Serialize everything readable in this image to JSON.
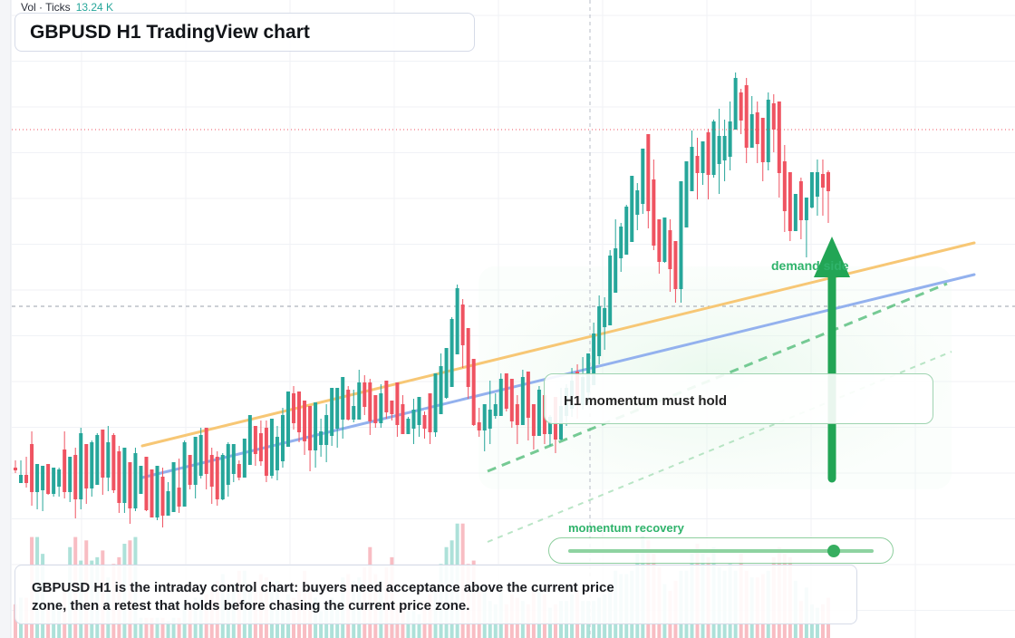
{
  "volume_legend": {
    "label": "Vol · Ticks",
    "value": "13.24 K"
  },
  "title": "GBPUSD H1 TradingView chart",
  "callout": "H1 momentum must hold",
  "zone_label": "demand side",
  "momentum": {
    "label": "momentum recovery",
    "level": 0.87
  },
  "summary": "GBPUSD H1 is the intraday control chart: buyers need acceptance above the current price zone, then a retest that holds before chasing the current price zone.",
  "colors": {
    "up": "#26a69a",
    "down": "#ef5361",
    "orange_line": "#f7c775",
    "blue_line": "#93b1ee",
    "green_accent": "#22a555"
  },
  "chart_data": {
    "type": "candlestick",
    "symbol": "GBPUSD",
    "timeframe": "H1",
    "candles": [
      [
        50,
        48,
        49,
        46,
        53,
        1.0
      ],
      [
        49,
        52,
        45,
        53,
        41,
        1.2
      ],
      [
        52,
        49,
        45,
        55,
        38,
        1.2
      ],
      [
        49,
        36,
        62,
        69,
        28,
        3.0
      ],
      [
        36,
        37,
        51,
        47,
        26,
        3.0
      ],
      [
        37,
        39,
        50,
        44,
        25,
        2.5
      ],
      [
        39,
        35,
        51,
        48,
        34,
        0.9
      ],
      [
        35,
        39,
        49,
        40,
        33,
        1.0
      ],
      [
        39,
        39,
        48,
        49,
        33,
        1.1
      ],
      [
        39,
        36,
        59,
        69,
        32,
        1.6
      ],
      [
        36,
        38,
        55,
        54,
        30,
        2.7
      ],
      [
        38,
        32,
        56,
        60,
        21,
        3.0
      ],
      [
        32,
        40,
        68,
        71,
        26,
        2.3
      ],
      [
        40,
        38,
        62,
        60,
        29,
        2.9
      ],
      [
        38,
        40,
        63,
        64,
        33,
        2.3
      ],
      [
        40,
        46,
        67,
        68,
        41,
        2.4
      ],
      [
        46,
        44,
        70,
        64,
        34,
        2.6
      ],
      [
        44,
        45,
        63,
        72,
        36,
        1.8
      ],
      [
        45,
        37,
        67,
        68,
        35,
        2.2
      ],
      [
        37,
        30,
        58,
        61,
        24,
        2.4
      ],
      [
        30,
        34,
        60,
        56,
        24,
        2.8
      ],
      [
        34,
        27,
        52,
        52,
        18,
        2.9
      ],
      [
        27,
        35,
        57,
        60,
        25,
        3.0
      ],
      [
        35,
        36,
        50,
        50,
        35,
        0.6
      ],
      [
        36,
        26,
        55,
        50,
        25,
        0.6
      ],
      [
        26,
        22,
        48,
        48,
        22,
        0.6
      ],
      [
        22,
        30,
        50,
        45,
        20,
        0.6
      ],
      [
        30,
        23,
        44,
        49,
        16,
        0.6
      ],
      [
        23,
        25,
        36,
        41,
        26,
        0.5
      ],
      [
        25,
        36,
        52,
        44,
        28,
        0.6
      ],
      [
        36,
        28,
        38,
        54,
        24,
        0.6
      ],
      [
        28,
        43,
        63,
        64,
        34,
        1.0
      ],
      [
        43,
        40,
        56,
        56,
        37,
        0.9
      ],
      [
        40,
        45,
        66,
        62,
        32,
        1.2
      ],
      [
        45,
        50,
        67,
        71,
        43,
        1.2
      ],
      [
        50,
        46,
        71,
        64,
        37,
        1.3
      ],
      [
        46,
        39,
        56,
        60,
        29,
        1.5
      ],
      [
        39,
        32,
        55,
        58,
        28,
        1.7
      ],
      [
        32,
        40,
        56,
        57,
        31,
        1.9
      ],
      [
        40,
        46,
        62,
        63,
        33,
        1.5
      ],
      [
        46,
        47,
        62,
        62,
        41,
        1.6
      ],
      [
        47,
        44,
        51,
        53,
        42,
        2.0
      ],
      [
        44,
        51,
        65,
        63,
        45,
        2.0
      ],
      [
        51,
        58,
        78,
        70,
        57,
        1.6
      ],
      [
        58,
        57,
        72,
        66,
        50,
        1.7
      ],
      [
        57,
        53,
        68,
        75,
        50,
        1.9
      ],
      [
        53,
        45,
        71,
        75,
        41,
        1.8
      ],
      [
        45,
        48,
        76,
        76,
        43,
        1.5
      ],
      [
        48,
        53,
        66,
        72,
        42,
        1.7
      ],
      [
        53,
        61,
        78,
        82,
        49,
        1.0
      ],
      [
        61,
        75,
        91,
        89,
        67,
        1.3
      ],
      [
        75,
        74,
        90,
        94,
        70,
        1.2
      ],
      [
        74,
        69,
        91,
        89,
        63,
        1.4
      ],
      [
        69,
        64,
        86,
        84,
        56,
        2.0
      ],
      [
        64,
        59,
        83,
        76,
        47,
        1.4
      ],
      [
        59,
        62,
        85,
        77,
        49,
        1.2
      ],
      [
        62,
        62,
        69,
        76,
        55,
        0.8
      ],
      [
        62,
        67,
        78,
        84,
        52,
        0.9
      ],
      [
        67,
        71,
        93,
        84,
        61,
        1.2
      ],
      [
        71,
        76,
        93,
        91,
        60,
        1.1
      ],
      [
        76,
        81,
        99,
        97,
        65,
        1.8
      ],
      [
        81,
        76,
        92,
        94,
        75,
        1.9
      ],
      [
        76,
        76,
        83,
        92,
        74,
        1.7
      ],
      [
        76,
        84,
        96,
        103,
        78,
        1.8
      ],
      [
        84,
        83,
        96,
        100,
        78,
        2.1
      ],
      [
        83,
        75,
        96,
        98,
        67,
        2.7
      ],
      [
        75,
        74,
        89,
        88,
        71,
        1.9
      ],
      [
        74,
        83,
        90,
        95,
        71,
        1.7
      ],
      [
        83,
        80,
        97,
        96,
        76,
        2.1
      ],
      [
        80,
        79,
        86,
        85,
        75,
        2.4
      ],
      [
        79,
        73,
        96,
        94,
        66,
        1.0
      ],
      [
        73,
        68,
        84,
        89,
        68,
        1.1
      ],
      [
        68,
        71,
        76,
        77,
        71,
        0.8
      ],
      [
        71,
        73,
        81,
        87,
        62,
        0.8
      ],
      [
        73,
        76,
        88,
        87,
        66,
        0.7
      ],
      [
        76,
        71,
        78,
        80,
        65,
        1.1
      ],
      [
        71,
        69,
        90,
        81,
        62,
        1.3
      ],
      [
        69,
        79,
        101,
        101,
        66,
        1.4
      ],
      [
        79,
        88,
        105,
        112,
        87,
        2.2
      ],
      [
        88,
        94,
        115,
        107,
        87,
        2.7
      ],
      [
        94,
        112,
        131,
        132,
        98,
        2.9
      ],
      [
        112,
        131,
        148,
        150,
        129,
        3.4
      ],
      [
        131,
        117,
        139,
        142,
        104,
        3.4
      ],
      [
        117,
        94,
        126,
        122,
        87,
        2.2
      ],
      [
        94,
        73,
        109,
        107,
        72,
        2.3
      ],
      [
        73,
        70,
        74,
        82,
        66,
        1.4
      ],
      [
        70,
        71,
        84,
        83,
        58,
        1.6
      ],
      [
        71,
        78,
        81,
        97,
        62,
        1.1
      ],
      [
        78,
        78,
        84,
        90,
        76,
        1.0
      ],
      [
        78,
        87,
        98,
        101,
        84,
        1.4
      ],
      [
        87,
        82,
        101,
        101,
        80,
        1.0
      ],
      [
        82,
        75,
        98,
        97,
        71,
        1.3
      ],
      [
        75,
        73,
        84,
        89,
        62,
        1.2
      ],
      [
        73,
        81,
        99,
        103,
        81,
        1.1
      ],
      [
        81,
        77,
        102,
        93,
        64,
        1.0
      ],
      [
        77,
        67,
        84,
        83,
        59,
        1.4
      ],
      [
        67,
        74,
        92,
        94,
        73,
        1.4
      ],
      [
        74,
        68,
        89,
        88,
        62,
        1.3
      ],
      [
        68,
        71,
        77,
        78,
        61,
        0.9
      ],
      [
        71,
        65,
        88,
        86,
        57,
        1.0
      ],
      [
        65,
        78,
        83,
        93,
        64,
        1.1
      ],
      [
        78,
        82,
        93,
        95,
        72,
        1.1
      ],
      [
        82,
        86,
        97,
        104,
        77,
        1.3
      ],
      [
        86,
        84,
        102,
        106,
        76,
        1.4
      ],
      [
        84,
        91,
        99,
        110,
        81,
        1.1
      ],
      [
        91,
        95,
        112,
        112,
        85,
        1.1
      ],
      [
        95,
        111,
        123,
        129,
        99,
        1.1
      ],
      [
        111,
        127,
        138,
        144,
        106,
        1.2
      ],
      [
        127,
        128,
        137,
        143,
        114,
        1.3
      ],
      [
        128,
        146,
        166,
        169,
        136,
        1.6
      ],
      [
        146,
        165,
        170,
        186,
        157,
        2.0
      ],
      [
        165,
        167,
        182,
        184,
        157,
        1.9
      ],
      [
        167,
        174,
        193,
        194,
        168,
        1.9
      ],
      [
        174,
        189,
        210,
        210,
        178,
        2.0
      ],
      [
        189,
        195,
        202,
        206,
        180,
        2.5
      ],
      [
        195,
        206,
        225,
        225,
        189,
        3.0
      ],
      [
        206,
        191,
        233,
        227,
        181,
        2.9
      ],
      [
        191,
        172,
        208,
        219,
        169,
        2.5
      ],
      [
        172,
        163,
        186,
        184,
        156,
        2.1
      ],
      [
        163,
        169,
        187,
        178,
        162,
        1.6
      ],
      [
        169,
        159,
        180,
        186,
        146,
        1.4
      ],
      [
        159,
        148,
        174,
        167,
        140,
        1.7
      ],
      [
        148,
        182,
        207,
        204,
        140,
        2.0
      ],
      [
        182,
        202,
        218,
        218,
        193,
        2.0
      ],
      [
        202,
        220,
        226,
        235,
        208,
        2.5
      ],
      [
        220,
        212,
        221,
        231,
        197,
        2.8
      ],
      [
        212,
        216,
        229,
        224,
        205,
        2.5
      ],
      [
        216,
        211,
        234,
        236,
        197,
        2.4
      ],
      [
        211,
        217,
        240,
        241,
        209,
        2.7
      ],
      [
        217,
        219,
        232,
        247,
        200,
        2.1
      ],
      [
        219,
        221,
        232,
        241,
        207,
        2.0
      ],
      [
        221,
        236,
        240,
        251,
        213,
        2.2
      ],
      [
        236,
        247,
        264,
        267,
        241,
        2.0
      ],
      [
        247,
        241,
        256,
        258,
        233,
        2.5
      ],
      [
        241,
        226,
        260,
        264,
        217,
        2.0
      ],
      [
        226,
        238,
        244,
        254,
        229,
        1.8
      ],
      [
        238,
        228,
        245,
        251,
        217,
        1.8
      ],
      [
        228,
        218,
        242,
        237,
        207,
        1.9
      ],
      [
        218,
        240,
        252,
        256,
        213,
        2.0
      ],
      [
        240,
        236,
        250,
        255,
        223,
        2.4
      ],
      [
        236,
        212,
        251,
        249,
        198,
        2.7
      ],
      [
        212,
        191,
        218,
        227,
        179,
        2.5
      ],
      [
        191,
        180,
        212,
        203,
        174,
        2.4
      ],
      [
        180,
        194,
        200,
        200,
        190,
        1.7
      ],
      [
        194,
        186,
        207,
        209,
        175,
        1.1
      ],
      [
        186,
        193,
        198,
        195,
        165,
        1.5
      ],
      [
        193,
        199,
        212,
        211,
        192,
        1.0
      ],
      [
        199,
        211,
        212,
        219,
        188,
        0.9
      ],
      [
        211,
        204,
        211,
        219,
        188,
        1.0
      ],
      [
        204,
        202,
        212,
        213,
        184,
        1.2
      ]
    ],
    "volume_scale": [
      0,
      3.5
    ]
  }
}
